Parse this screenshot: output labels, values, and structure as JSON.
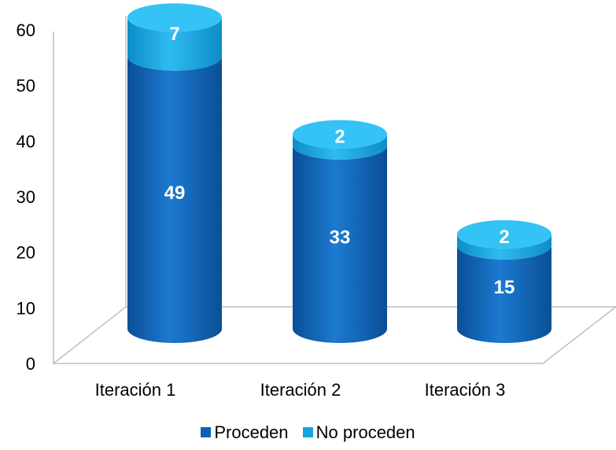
{
  "chart_data": {
    "type": "bar",
    "stacked": true,
    "style": "3d-cylinder",
    "categories": [
      "Iteración 1",
      "Iteración 2",
      "Iteración 3"
    ],
    "series": [
      {
        "name": "Proceden",
        "values": [
          49,
          33,
          15
        ],
        "color": "#0b62b3"
      },
      {
        "name": "No proceden",
        "values": [
          7,
          2,
          2
        ],
        "color": "#12a6e0"
      }
    ],
    "yticks": [
      "0",
      "10",
      "20",
      "30",
      "40",
      "50",
      "60"
    ],
    "ylim": [
      0,
      60
    ],
    "title": "",
    "xlabel": "",
    "ylabel": "",
    "legend_position": "bottom",
    "grid": false
  }
}
